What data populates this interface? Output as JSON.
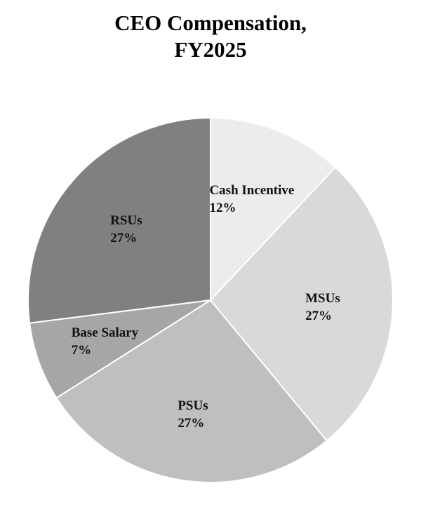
{
  "chart_data": {
    "type": "pie",
    "title_lines": [
      "CEO Compensation,",
      "FY2025"
    ],
    "slices": [
      {
        "label": "Cash Incentive",
        "value": 12,
        "value_label": "12%",
        "color": "#ececec"
      },
      {
        "label": "MSUs",
        "value": 27,
        "value_label": "27%",
        "color": "#d9d9d9"
      },
      {
        "label": "PSUs",
        "value": 27,
        "value_label": "27%",
        "color": "#bfbfbf"
      },
      {
        "label": "Base Salary",
        "value": 7,
        "value_label": "7%",
        "color": "#a6a6a6"
      },
      {
        "label": "RSUs",
        "value": 27,
        "value_label": "27%",
        "color": "#808080"
      }
    ],
    "slice_edge_color": "#ffffff",
    "start_angle": "12 o'clock",
    "direction": "clockwise"
  }
}
